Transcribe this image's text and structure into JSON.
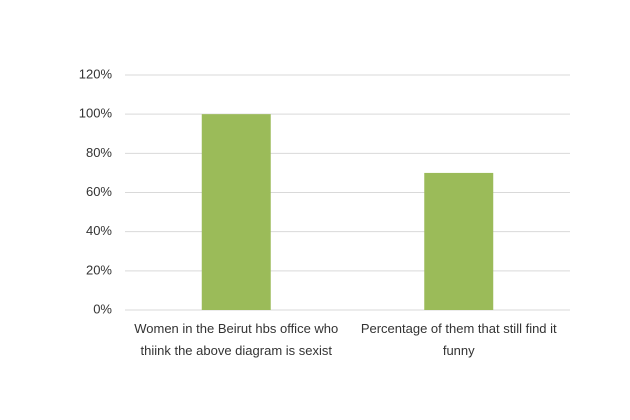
{
  "chart_data": {
    "type": "bar",
    "categories": [
      "Women in the Beirut hbs office who thiink the above diagram is sexist",
      "Percentage of them that still find it funny"
    ],
    "values": [
      100,
      70
    ],
    "color": "#9bbb59",
    "ylim": [
      0,
      120
    ],
    "yticks": [
      {
        "value": 0,
        "label": "0%"
      },
      {
        "value": 20,
        "label": "20%"
      },
      {
        "value": 40,
        "label": "40%"
      },
      {
        "value": 60,
        "label": "60%"
      },
      {
        "value": 80,
        "label": "80%"
      },
      {
        "value": 100,
        "label": "100%"
      },
      {
        "value": 120,
        "label": "120%"
      }
    ],
    "grid": true
  }
}
